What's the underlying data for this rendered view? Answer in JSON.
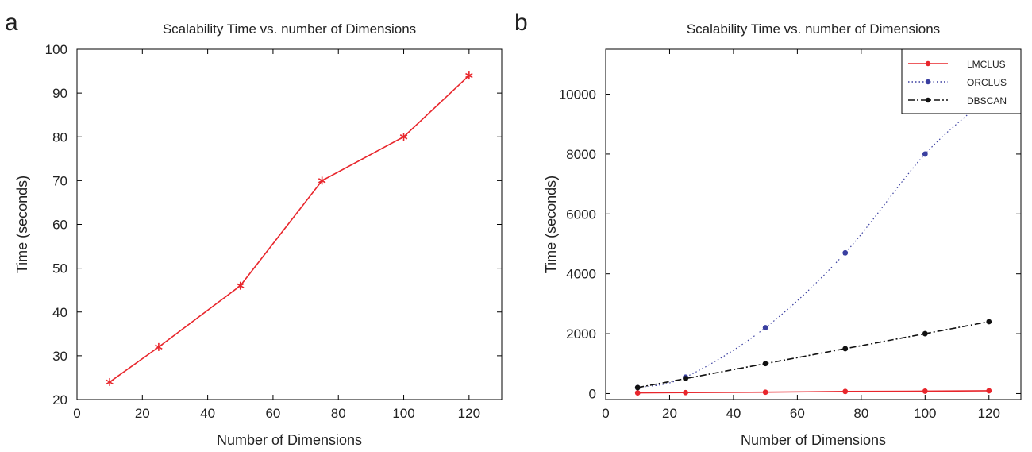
{
  "chart_data": [
    {
      "panel_label": "a",
      "type": "line",
      "title": "Scalability Time vs. number of Dimensions",
      "xlabel": "Number of Dimensions",
      "ylabel": "Time (seconds)",
      "xlim": [
        0,
        130
      ],
      "ylim": [
        20,
        100
      ],
      "xticks": [
        0,
        20,
        40,
        60,
        80,
        100,
        120
      ],
      "yticks": [
        20,
        30,
        40,
        50,
        60,
        70,
        80,
        90,
        100
      ],
      "grid": false,
      "series": [
        {
          "color": "#e8262c",
          "line_style": "solid",
          "marker": "asterisk",
          "x": [
            10,
            25,
            50,
            75,
            100,
            120
          ],
          "y": [
            24,
            32,
            46,
            70,
            80,
            94
          ]
        }
      ]
    },
    {
      "panel_label": "b",
      "type": "line",
      "title": "Scalability Time vs. number of Dimensions",
      "xlabel": "Number of Dimensions",
      "ylabel": "Time (seconds)",
      "xlim": [
        0,
        130
      ],
      "ylim": [
        -200,
        11500
      ],
      "xticks": [
        0,
        20,
        40,
        60,
        80,
        100,
        120
      ],
      "yticks": [
        0,
        2000,
        4000,
        6000,
        8000,
        10000
      ],
      "grid": false,
      "legend_position": "top-right",
      "series": [
        {
          "name": "LMCLUS",
          "color": "#e8262c",
          "line_style": "solid",
          "marker": "dot",
          "x": [
            10,
            25,
            50,
            75,
            100,
            120
          ],
          "y": [
            24,
            32,
            46,
            70,
            80,
            94
          ]
        },
        {
          "name": "ORCLUS",
          "color": "#3a3fa0",
          "line_style": "dotted",
          "marker": "dot",
          "x": [
            10,
            25,
            50,
            75,
            100,
            120
          ],
          "y": [
            200,
            550,
            2200,
            4700,
            8000,
            9900
          ]
        },
        {
          "name": "DBSCAN",
          "color": "#111111",
          "line_style": "dashdot",
          "marker": "dot",
          "x": [
            10,
            25,
            50,
            75,
            100,
            120
          ],
          "y": [
            200,
            500,
            1000,
            1500,
            2000,
            2400
          ]
        }
      ]
    }
  ]
}
